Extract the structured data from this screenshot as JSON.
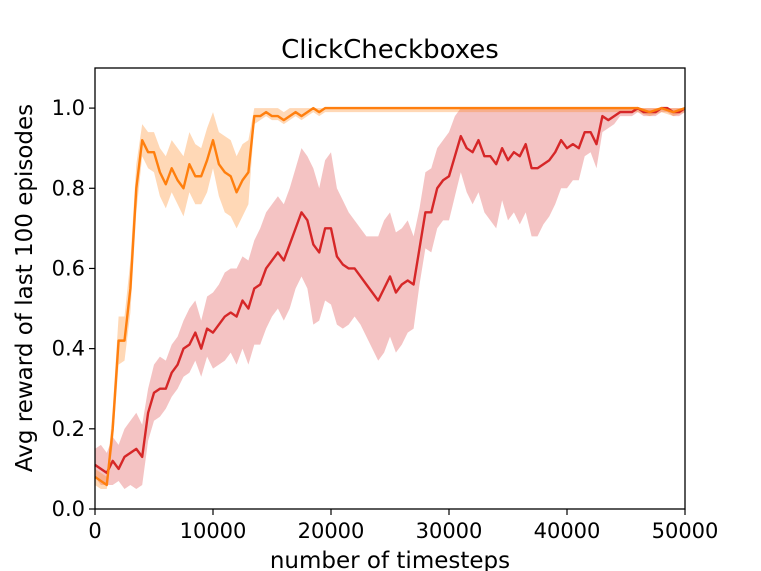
{
  "chart_data": {
    "type": "line",
    "title": "ClickCheckboxes",
    "xlabel": "number of timesteps",
    "ylabel": "Avg reward of last 100 episodes",
    "xlim": [
      0,
      50000
    ],
    "ylim": [
      0,
      1.1
    ],
    "x_ticks": [
      0,
      10000,
      20000,
      30000,
      40000,
      50000
    ],
    "x_tick_labels": [
      "0",
      "10000",
      "20000",
      "30000",
      "40000",
      "50000"
    ],
    "y_ticks": [
      0.0,
      0.2,
      0.4,
      0.6,
      0.8,
      1.0
    ],
    "y_tick_labels": [
      "0.0",
      "0.2",
      "0.4",
      "0.6",
      "0.8",
      "1.0"
    ],
    "grid": false,
    "legend": "none",
    "series": [
      {
        "color": "#d62728",
        "band_opacity": 0.28,
        "x": [
          0,
          500,
          1000,
          1500,
          2000,
          2500,
          3000,
          3500,
          4000,
          4500,
          5000,
          5500,
          6000,
          6500,
          7000,
          7500,
          8000,
          8500,
          9000,
          9500,
          10000,
          10500,
          11000,
          11500,
          12000,
          12500,
          13000,
          13500,
          14000,
          14500,
          15000,
          15500,
          16000,
          16500,
          17000,
          17500,
          18000,
          18500,
          19000,
          19500,
          20000,
          20500,
          21000,
          21500,
          22000,
          22500,
          23000,
          23500,
          24000,
          24500,
          25000,
          25500,
          26000,
          26500,
          27000,
          27500,
          28000,
          28500,
          29000,
          29500,
          30000,
          30500,
          31000,
          31500,
          32000,
          32500,
          33000,
          33500,
          34000,
          34500,
          35000,
          35500,
          36000,
          36500,
          37000,
          37500,
          38000,
          38500,
          39000,
          39500,
          40000,
          40500,
          41000,
          41500,
          42000,
          42500,
          43000,
          43500,
          44000,
          44500,
          45000,
          45500,
          46000,
          46500,
          47000,
          47500,
          48000,
          48500,
          49000,
          49500,
          50000
        ],
        "mean": [
          0.11,
          0.1,
          0.09,
          0.12,
          0.1,
          0.13,
          0.14,
          0.15,
          0.13,
          0.24,
          0.29,
          0.3,
          0.3,
          0.34,
          0.36,
          0.4,
          0.41,
          0.44,
          0.4,
          0.45,
          0.44,
          0.46,
          0.48,
          0.49,
          0.48,
          0.52,
          0.5,
          0.55,
          0.56,
          0.6,
          0.62,
          0.64,
          0.62,
          0.66,
          0.7,
          0.74,
          0.72,
          0.66,
          0.64,
          0.7,
          0.7,
          0.63,
          0.61,
          0.6,
          0.6,
          0.58,
          0.56,
          0.54,
          0.52,
          0.55,
          0.58,
          0.54,
          0.56,
          0.57,
          0.56,
          0.65,
          0.74,
          0.74,
          0.8,
          0.82,
          0.83,
          0.88,
          0.93,
          0.9,
          0.89,
          0.92,
          0.88,
          0.88,
          0.86,
          0.9,
          0.87,
          0.89,
          0.88,
          0.91,
          0.85,
          0.85,
          0.86,
          0.87,
          0.89,
          0.92,
          0.9,
          0.91,
          0.9,
          0.94,
          0.94,
          0.91,
          0.98,
          0.97,
          0.98,
          0.99,
          0.99,
          0.99,
          1.0,
          0.99,
          0.99,
          0.99,
          1.0,
          1.0,
          0.99,
          0.99,
          1.0
        ],
        "lower": [
          0.08,
          0.06,
          0.06,
          0.06,
          0.07,
          0.05,
          0.06,
          0.05,
          0.06,
          0.17,
          0.22,
          0.23,
          0.25,
          0.28,
          0.3,
          0.33,
          0.34,
          0.37,
          0.33,
          0.38,
          0.35,
          0.36,
          0.37,
          0.39,
          0.36,
          0.4,
          0.36,
          0.41,
          0.41,
          0.45,
          0.48,
          0.5,
          0.47,
          0.5,
          0.55,
          0.58,
          0.55,
          0.46,
          0.47,
          0.52,
          0.51,
          0.46,
          0.45,
          0.46,
          0.48,
          0.46,
          0.43,
          0.4,
          0.37,
          0.39,
          0.43,
          0.39,
          0.41,
          0.44,
          0.45,
          0.56,
          0.65,
          0.64,
          0.7,
          0.72,
          0.72,
          0.78,
          0.84,
          0.79,
          0.76,
          0.79,
          0.74,
          0.72,
          0.7,
          0.77,
          0.72,
          0.74,
          0.71,
          0.74,
          0.68,
          0.68,
          0.71,
          0.73,
          0.76,
          0.8,
          0.8,
          0.82,
          0.82,
          0.88,
          0.89,
          0.85,
          0.94,
          0.95,
          0.96,
          0.98,
          0.98,
          0.98,
          0.99,
          0.98,
          0.98,
          0.98,
          0.99,
          0.99,
          0.98,
          0.98,
          0.99
        ],
        "upper": [
          0.15,
          0.16,
          0.14,
          0.18,
          0.16,
          0.2,
          0.22,
          0.24,
          0.21,
          0.3,
          0.36,
          0.38,
          0.37,
          0.41,
          0.43,
          0.47,
          0.5,
          0.52,
          0.47,
          0.53,
          0.54,
          0.56,
          0.59,
          0.6,
          0.6,
          0.63,
          0.62,
          0.67,
          0.7,
          0.74,
          0.76,
          0.78,
          0.76,
          0.8,
          0.85,
          0.9,
          0.88,
          0.85,
          0.8,
          0.87,
          0.89,
          0.8,
          0.77,
          0.74,
          0.72,
          0.7,
          0.68,
          0.68,
          0.68,
          0.72,
          0.74,
          0.69,
          0.7,
          0.72,
          0.68,
          0.75,
          0.84,
          0.85,
          0.9,
          0.92,
          0.94,
          0.98,
          1.0,
          1.0,
          1.0,
          1.0,
          1.0,
          1.0,
          1.0,
          1.0,
          1.0,
          1.0,
          1.0,
          1.0,
          1.0,
          1.0,
          1.0,
          1.0,
          1.0,
          1.0,
          1.0,
          1.0,
          1.0,
          1.0,
          1.0,
          1.0,
          1.0,
          1.0,
          1.0,
          1.0,
          1.0,
          1.0,
          1.0,
          1.0,
          1.0,
          1.0,
          1.0,
          1.0,
          1.0,
          1.0,
          1.0
        ]
      },
      {
        "color": "#ff7f0e",
        "band_opacity": 0.3,
        "x": [
          0,
          500,
          1000,
          1500,
          2000,
          2500,
          3000,
          3500,
          4000,
          4500,
          5000,
          5500,
          6000,
          6500,
          7000,
          7500,
          8000,
          8500,
          9000,
          9500,
          10000,
          10500,
          11000,
          11500,
          12000,
          12500,
          13000,
          13500,
          14000,
          14500,
          15000,
          15500,
          16000,
          16500,
          17000,
          17500,
          18000,
          18500,
          19000,
          19500,
          20000,
          21000,
          22000,
          23000,
          24000,
          25000,
          26000,
          27000,
          28000,
          29000,
          30000,
          31000,
          32000,
          33000,
          34000,
          35000,
          36000,
          37000,
          38000,
          39000,
          40000,
          41000,
          42000,
          43000,
          44000,
          45000,
          46000,
          47000,
          48000,
          49000,
          50000
        ],
        "mean": [
          0.08,
          0.07,
          0.06,
          0.2,
          0.42,
          0.42,
          0.55,
          0.8,
          0.92,
          0.89,
          0.89,
          0.84,
          0.81,
          0.85,
          0.82,
          0.8,
          0.86,
          0.83,
          0.83,
          0.87,
          0.92,
          0.86,
          0.84,
          0.83,
          0.79,
          0.82,
          0.84,
          0.98,
          0.98,
          0.99,
          0.98,
          0.98,
          0.97,
          0.98,
          0.99,
          0.98,
          0.99,
          1.0,
          0.99,
          1.0,
          1.0,
          1.0,
          1.0,
          1.0,
          1.0,
          1.0,
          1.0,
          1.0,
          1.0,
          1.0,
          1.0,
          1.0,
          1.0,
          1.0,
          1.0,
          1.0,
          1.0,
          1.0,
          1.0,
          1.0,
          1.0,
          1.0,
          1.0,
          1.0,
          1.0,
          1.0,
          1.0,
          0.99,
          1.0,
          0.99,
          1.0
        ],
        "lower": [
          0.06,
          0.05,
          0.05,
          0.16,
          0.36,
          0.37,
          0.49,
          0.74,
          0.88,
          0.85,
          0.84,
          0.78,
          0.75,
          0.79,
          0.76,
          0.73,
          0.79,
          0.76,
          0.76,
          0.79,
          0.85,
          0.78,
          0.74,
          0.73,
          0.7,
          0.73,
          0.76,
          0.96,
          0.97,
          0.98,
          0.97,
          0.97,
          0.96,
          0.97,
          0.98,
          0.97,
          0.98,
          0.99,
          0.98,
          0.99,
          0.99,
          0.99,
          0.99,
          0.99,
          0.99,
          0.99,
          0.99,
          0.99,
          0.99,
          0.99,
          0.99,
          0.99,
          0.99,
          0.99,
          0.99,
          0.99,
          0.99,
          0.99,
          0.99,
          0.99,
          0.99,
          0.99,
          0.99,
          0.99,
          0.99,
          0.99,
          0.99,
          0.98,
          0.99,
          0.98,
          0.99
        ],
        "upper": [
          0.1,
          0.09,
          0.08,
          0.25,
          0.48,
          0.48,
          0.62,
          0.86,
          0.96,
          0.94,
          0.94,
          0.9,
          0.88,
          0.92,
          0.9,
          0.88,
          0.94,
          0.91,
          0.9,
          0.95,
          0.99,
          0.94,
          0.93,
          0.92,
          0.88,
          0.91,
          0.92,
          1.0,
          1.0,
          1.0,
          1.0,
          1.0,
          0.99,
          1.0,
          1.0,
          1.0,
          1.0,
          1.0,
          1.0,
          1.0,
          1.0,
          1.0,
          1.0,
          1.0,
          1.0,
          1.0,
          1.0,
          1.0,
          1.0,
          1.0,
          1.0,
          1.0,
          1.0,
          1.0,
          1.0,
          1.0,
          1.0,
          1.0,
          1.0,
          1.0,
          1.0,
          1.0,
          1.0,
          1.0,
          1.0,
          1.0,
          1.0,
          1.0,
          1.0,
          1.0,
          1.0
        ]
      }
    ]
  }
}
